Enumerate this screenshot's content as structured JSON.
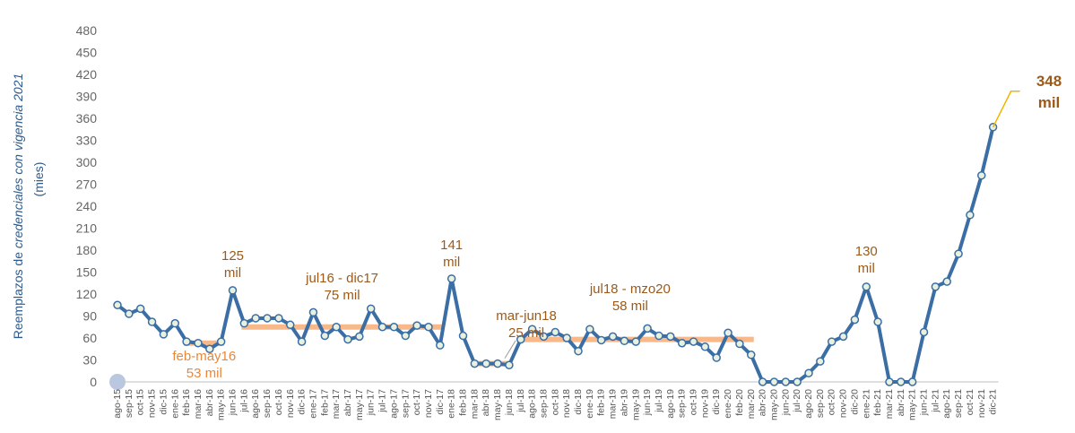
{
  "chart_data": {
    "type": "line",
    "ylabel_parts": [
      "Reemplazos de ",
      "credenciales con vigencia 2021"
    ],
    "yunits": "(mies)",
    "ylim": [
      0,
      480
    ],
    "yticks": [
      0,
      30,
      60,
      90,
      120,
      150,
      180,
      210,
      240,
      270,
      300,
      330,
      360,
      390,
      420,
      450,
      480
    ],
    "grid": false,
    "legend": "none",
    "colors": {
      "line": "#3a6ea5",
      "marker_fill": "#e8f0e0",
      "segment": "#f7b98a",
      "annotation": "#9c5a1a",
      "annotation_light": "#e8883a",
      "axis": "#bfbfbf",
      "origin_marker": "#b9c8e0"
    },
    "categories": [
      "ago-15",
      "sep-15",
      "oct-15",
      "nov-15",
      "dic-15",
      "ene-16",
      "feb-16",
      "mar-16",
      "abr-16",
      "may-16",
      "jun-16",
      "jul-16",
      "ago-16",
      "sep-16",
      "oct-16",
      "nov-16",
      "dic-16",
      "ene-17",
      "feb-17",
      "mar-17",
      "abr-17",
      "may-17",
      "jun-17",
      "jul-17",
      "ago-17",
      "sep-17",
      "oct-17",
      "nov-17",
      "dic-17",
      "ene-18",
      "feb-18",
      "mar-18",
      "abr-18",
      "may-18",
      "jun-18",
      "jul-18",
      "ago-18",
      "sep-18",
      "oct-18",
      "nov-18",
      "dic-18",
      "ene-19",
      "feb-19",
      "mar-19",
      "abr-19",
      "may-19",
      "jun-19",
      "jul-19",
      "ago-19",
      "sep-19",
      "oct-19",
      "nov-19",
      "dic-19",
      "ene-20",
      "feb-20",
      "mar-20",
      "abr-20",
      "may-20",
      "jun-20",
      "jul-20",
      "ago-20",
      "sep-20",
      "oct-20",
      "nov-20",
      "dic-20",
      "ene-21",
      "feb-21",
      "mar-21",
      "abr-21",
      "may-21",
      "jun-21",
      "jul-21",
      "ago-21",
      "sep-21",
      "oct-21",
      "nov-21",
      "dic-21"
    ],
    "series": [
      {
        "values": [
          105,
          93,
          100,
          82,
          65,
          80,
          55,
          53,
          45,
          55,
          125,
          80,
          87,
          87,
          87,
          78,
          55,
          95,
          63,
          75,
          58,
          62,
          100,
          75,
          75,
          63,
          77,
          75,
          50,
          141,
          63,
          25,
          25,
          25,
          23,
          58,
          72,
          62,
          68,
          60,
          42,
          72,
          57,
          62,
          56,
          55,
          73,
          63,
          62,
          53,
          55,
          48,
          33,
          67,
          52,
          37,
          0,
          0,
          0,
          0,
          12,
          28,
          55,
          62,
          85,
          130,
          82,
          0,
          0,
          0,
          68,
          130,
          137,
          175,
          228,
          282,
          348
        ]
      }
    ],
    "segments": [
      {
        "from": "feb-16",
        "to": "may-16",
        "value": 53
      },
      {
        "from": "jul-16",
        "to": "dic-17",
        "value": 75
      },
      {
        "from": "mar-18",
        "to": "jun-18",
        "value": 25
      },
      {
        "from": "jul-18",
        "to": "mzo-20",
        "value": 58
      }
    ],
    "annotations": [
      {
        "at": "jun-16",
        "value": 125,
        "lines": [
          "125",
          "mil"
        ],
        "color": "dark"
      },
      {
        "at": "ene-18",
        "value": 141,
        "lines": [
          "141",
          "mil"
        ],
        "color": "dark"
      },
      {
        "at": "ene-21",
        "value": 130,
        "lines": [
          "130",
          "mil"
        ],
        "color": "dark"
      },
      {
        "at": "abr-16",
        "value": 53,
        "lines": [
          "feb-may16",
          "53 mil"
        ],
        "color": "light"
      },
      {
        "at": "dic-16",
        "value": 75,
        "lines": [
          "jul16 - dic17",
          "75 mil"
        ],
        "color": "dark"
      },
      {
        "at": "may-18",
        "value": 25,
        "lines": [
          "mar-jun18",
          "25 mil"
        ],
        "color": "dark"
      },
      {
        "at": "ene-19",
        "value": 58,
        "lines": [
          "jul18 - mzo20",
          "58 mil"
        ],
        "color": "dark"
      }
    ],
    "final_label": {
      "at": "dic-21",
      "value": 348,
      "lines": [
        "348",
        "mil"
      ]
    }
  }
}
